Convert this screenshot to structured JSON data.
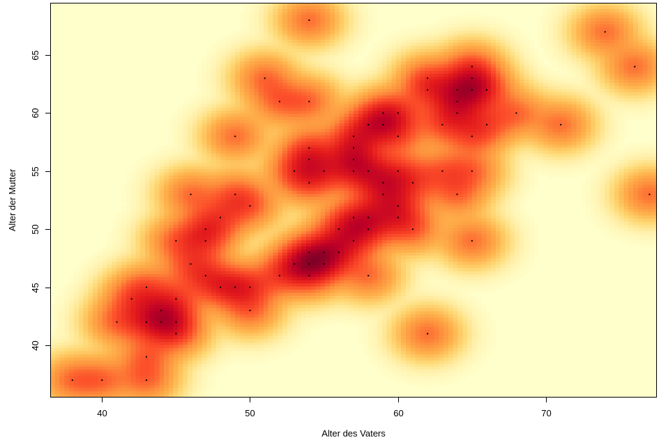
{
  "chart_data": {
    "type": "heatmap",
    "subtype": "smoothed-scatter-density",
    "xlabel": "Alter des Vaters",
    "ylabel": "Alter der Mutter",
    "xlim": [
      36.5,
      77.5
    ],
    "ylim": [
      35.5,
      69.5
    ],
    "xticks": [
      40,
      50,
      60,
      70
    ],
    "yticks": [
      40,
      45,
      50,
      55,
      60,
      65
    ],
    "grid": false,
    "colors": {
      "background": "#FFFFCC",
      "low": "#FED976",
      "mid": "#FD8D3C",
      "high": "#E31A1C",
      "peak": "#800026",
      "point": "#000000"
    },
    "points": [
      [
        38,
        37
      ],
      [
        40,
        37
      ],
      [
        43,
        37
      ],
      [
        43,
        39
      ],
      [
        41,
        42
      ],
      [
        43,
        42
      ],
      [
        44,
        42
      ],
      [
        45,
        42
      ],
      [
        44,
        43
      ],
      [
        45,
        44
      ],
      [
        45,
        41
      ],
      [
        42,
        44
      ],
      [
        43,
        45
      ],
      [
        45,
        49
      ],
      [
        46,
        47
      ],
      [
        46,
        53
      ],
      [
        47,
        46
      ],
      [
        47,
        49
      ],
      [
        47,
        50
      ],
      [
        48,
        45
      ],
      [
        48,
        51
      ],
      [
        49,
        45
      ],
      [
        49,
        53
      ],
      [
        49,
        58
      ],
      [
        50,
        45
      ],
      [
        50,
        43
      ],
      [
        50,
        52
      ],
      [
        51,
        63
      ],
      [
        52,
        61
      ],
      [
        52,
        46
      ],
      [
        53,
        47
      ],
      [
        53,
        55
      ],
      [
        54,
        47
      ],
      [
        54,
        48
      ],
      [
        54,
        46
      ],
      [
        54,
        54
      ],
      [
        54,
        56
      ],
      [
        54,
        57
      ],
      [
        54,
        61
      ],
      [
        54,
        68
      ],
      [
        55,
        47
      ],
      [
        55,
        48
      ],
      [
        55,
        55
      ],
      [
        56,
        48
      ],
      [
        56,
        50
      ],
      [
        57,
        49
      ],
      [
        57,
        51
      ],
      [
        57,
        55
      ],
      [
        57,
        56
      ],
      [
        57,
        57
      ],
      [
        57,
        58
      ],
      [
        58,
        46
      ],
      [
        58,
        50
      ],
      [
        58,
        51
      ],
      [
        58,
        55
      ],
      [
        58,
        59
      ],
      [
        59,
        53
      ],
      [
        59,
        54
      ],
      [
        59,
        59
      ],
      [
        59,
        60
      ],
      [
        60,
        51
      ],
      [
        60,
        52
      ],
      [
        60,
        55
      ],
      [
        60,
        58
      ],
      [
        60,
        60
      ],
      [
        61,
        50
      ],
      [
        61,
        54
      ],
      [
        62,
        41
      ],
      [
        62,
        62
      ],
      [
        62,
        63
      ],
      [
        63,
        55
      ],
      [
        63,
        59
      ],
      [
        64,
        53
      ],
      [
        64,
        60
      ],
      [
        64,
        61
      ],
      [
        64,
        62
      ],
      [
        65,
        49
      ],
      [
        65,
        55
      ],
      [
        65,
        58
      ],
      [
        65,
        62
      ],
      [
        65,
        63
      ],
      [
        65,
        64
      ],
      [
        66,
        59
      ],
      [
        66,
        62
      ],
      [
        68,
        60
      ],
      [
        71,
        59
      ],
      [
        74,
        67
      ],
      [
        76,
        64
      ],
      [
        77,
        53
      ]
    ]
  }
}
